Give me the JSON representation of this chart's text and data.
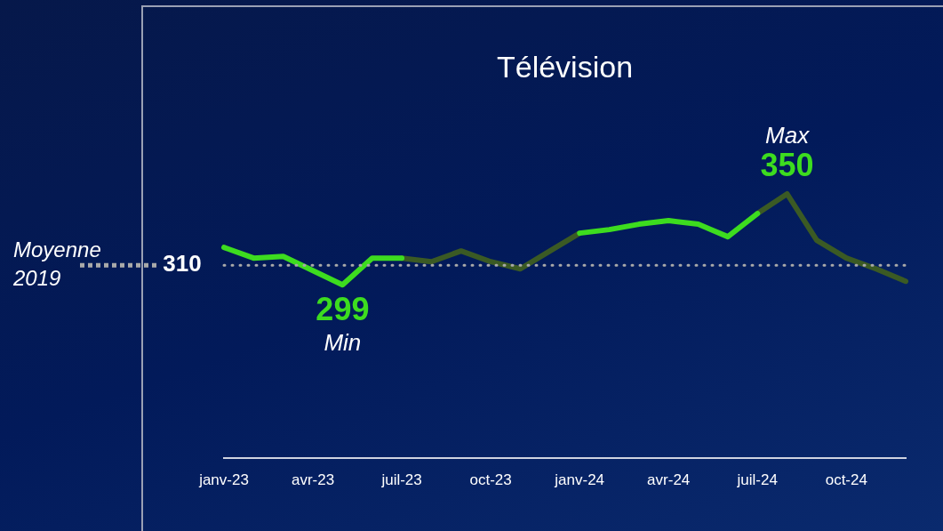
{
  "chart_data": {
    "type": "line",
    "title": "Télévision",
    "categories": [
      "janv-23",
      null,
      null,
      "avr-23",
      null,
      null,
      "juil-23",
      null,
      null,
      "oct-23",
      null,
      null,
      "janv-24",
      null,
      null,
      "avr-24",
      null,
      null,
      "juil-24",
      null,
      null,
      "oct-24",
      null,
      null
    ],
    "series": [
      {
        "color": "#3ddc1f",
        "values": [
          320,
          314,
          315,
          307,
          299,
          314,
          314,
          null,
          null,
          null,
          null,
          null,
          328,
          330,
          333,
          335,
          333,
          326,
          339,
          null,
          null,
          null,
          null,
          null
        ],
        "value_labels": [
          null,
          null,
          null,
          null,
          "299",
          null,
          null,
          null,
          null,
          null,
          null,
          null,
          null,
          null,
          null,
          null,
          null,
          null,
          null,
          null,
          null,
          null,
          null,
          null
        ]
      },
      {
        "color": "#3b5a24",
        "values": [
          null,
          null,
          null,
          null,
          null,
          null,
          314,
          312,
          318,
          312,
          308,
          318,
          328,
          null,
          null,
          null,
          null,
          null,
          339,
          350,
          324,
          314,
          308,
          301
        ],
        "value_labels": [
          null,
          null,
          null,
          null,
          null,
          null,
          null,
          null,
          null,
          null,
          null,
          null,
          null,
          null,
          null,
          null,
          null,
          null,
          null,
          "350",
          null,
          null,
          null,
          null
        ]
      }
    ],
    "tick_labels": "x",
    "grid": false,
    "legend": false,
    "ref_lines": [
      {
        "axis": "y",
        "value": 310,
        "label": "310",
        "color": "#a9a9a9",
        "line_style": "dotted"
      }
    ],
    "annotations": [
      "Moyenne 2019",
      {
        "text": "Min",
        "y": 299
      },
      {
        "text": "Max",
        "y": 350
      }
    ]
  }
}
